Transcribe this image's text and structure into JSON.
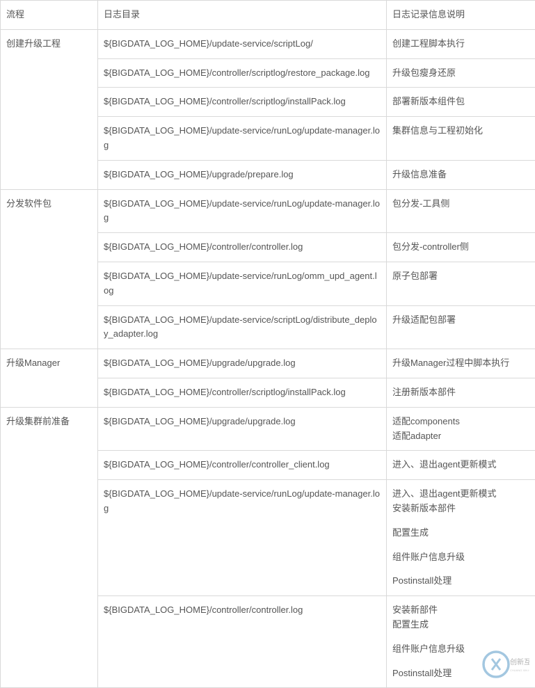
{
  "headers": {
    "process": "流程",
    "path": "日志目录",
    "desc": "日志记录信息说明"
  },
  "groups": [
    {
      "process": "创建升级工程",
      "rows": [
        {
          "path": "${BIGDATA_LOG_HOME}/update-service/scriptLog/",
          "desc": [
            "创建工程脚本执行"
          ]
        },
        {
          "path": "${BIGDATA_LOG_HOME}/controller/scriptlog/restore_package.log",
          "desc": [
            "升级包瘦身还原"
          ]
        },
        {
          "path": "${BIGDATA_LOG_HOME}/controller/scriptlog/installPack.log",
          "desc": [
            "部署新版本组件包"
          ]
        },
        {
          "path": "${BIGDATA_LOG_HOME}/update-service/runLog/update-manager.log",
          "desc": [
            "集群信息与工程初始化"
          ]
        },
        {
          "path": "${BIGDATA_LOG_HOME}/upgrade/prepare.log",
          "desc": [
            "升级信息准备"
          ]
        }
      ]
    },
    {
      "process": "分发软件包",
      "rows": [
        {
          "path": "${BIGDATA_LOG_HOME}/update-service/runLog/update-manager.log",
          "desc": [
            "包分发-工具侧"
          ]
        },
        {
          "path": "${BIGDATA_LOG_HOME}/controller/controller.log",
          "desc": [
            "包分发-controller侧"
          ]
        },
        {
          "path": "${BIGDATA_LOG_HOME}/update-service/runLog/omm_upd_agent.log",
          "desc": [
            "原子包部署"
          ]
        },
        {
          "path": "${BIGDATA_LOG_HOME}/update-service/scriptLog/distribute_deploy_adapter.log",
          "desc": [
            "升级适配包部署"
          ]
        }
      ]
    },
    {
      "process": "升级Manager",
      "rows": [
        {
          "path": "${BIGDATA_LOG_HOME}/upgrade/upgrade.log",
          "desc": [
            "升级Manager过程中脚本执行"
          ]
        },
        {
          "path": "${BIGDATA_LOG_HOME}/controller/scriptlog/installPack.log",
          "desc": [
            "注册新版本部件"
          ]
        }
      ]
    },
    {
      "process": "升级集群前准备",
      "rows": [
        {
          "path": "${BIGDATA_LOG_HOME}/upgrade/upgrade.log",
          "desc": [
            "适配components\n适配adapter"
          ]
        },
        {
          "path": "${BIGDATA_LOG_HOME}/controller/controller_client.log",
          "desc": [
            "进入、退出agent更新模式"
          ]
        },
        {
          "path": "${BIGDATA_LOG_HOME}/update-service/runLog/update-manager.log",
          "desc": [
            "进入、退出agent更新模式\n安装新版本部件",
            "配置生成",
            "组件账户信息升级",
            "Postinstall处理"
          ]
        },
        {
          "path": "${BIGDATA_LOG_HOME}/controller/controller.log",
          "desc": [
            "安装新部件\n配置生成",
            "组件账户信息升级",
            "Postinstall处理"
          ]
        }
      ]
    }
  ],
  "colors": {
    "border": "#d9d9d9",
    "text": "#555555",
    "background": "#ffffff"
  },
  "watermark": {
    "text": "创新互联",
    "subtext": "CHUANG XIN HU LIAN"
  }
}
